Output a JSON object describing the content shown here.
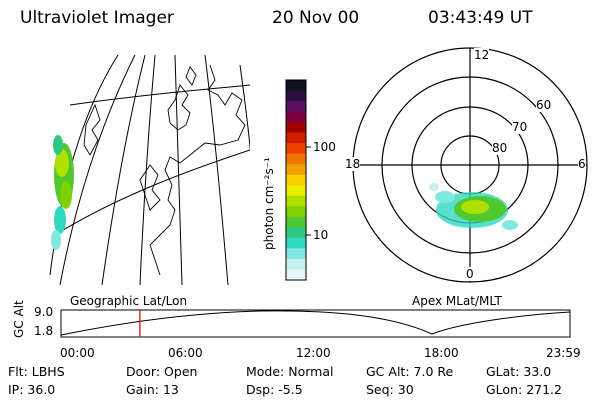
{
  "header": {
    "instrument": "Ultraviolet Imager",
    "date": "20 Nov 00",
    "time": "03:43:49 UT"
  },
  "colorbar": {
    "unit_label": "photon cm⁻²s⁻¹",
    "ticks": [
      "100",
      "10"
    ],
    "colors": [
      "#101020",
      "#2a1040",
      "#5a1060",
      "#7a0040",
      "#a00000",
      "#d02000",
      "#f04000",
      "#f07800",
      "#f0a000",
      "#f8d000",
      "#e8f000",
      "#b0e000",
      "#80d000",
      "#50c830",
      "#30c880",
      "#30d8c0",
      "#80e8e0",
      "#c8f0f0",
      "#e8f8f8"
    ]
  },
  "polar": {
    "mlt_labels": {
      "top": "12",
      "left": "18",
      "right": "6",
      "bottom": "0"
    },
    "lat_labels": [
      "60",
      "70",
      "80"
    ]
  },
  "timeline": {
    "axis_label": "GC Alt",
    "ymax": "9.0",
    "ymin": "1.8",
    "left_caption": "Geographic Lat/Lon",
    "right_caption": "Apex MLat/MLT",
    "x_ticks": [
      "00:00",
      "06:00",
      "12:00",
      "18:00",
      "23:59"
    ],
    "marker_time_fraction": 0.155
  },
  "footer": {
    "row1": [
      {
        "label": "Flt:",
        "value": "LBHS"
      },
      {
        "label": "Door:",
        "value": "Open"
      },
      {
        "label": "Mode:",
        "value": "Normal"
      },
      {
        "label": "GC Alt:",
        "value": "7.0 Re"
      },
      {
        "label": "GLat:",
        "value": "33.0"
      }
    ],
    "row2": [
      {
        "label": "IP:",
        "value": "36.0"
      },
      {
        "label": "Gain:",
        "value": "13"
      },
      {
        "label": "Dsp:",
        "value": "-5.5"
      },
      {
        "label": "Seq:",
        "value": "30"
      },
      {
        "label": "GLon:",
        "value": "271.2"
      }
    ]
  }
}
